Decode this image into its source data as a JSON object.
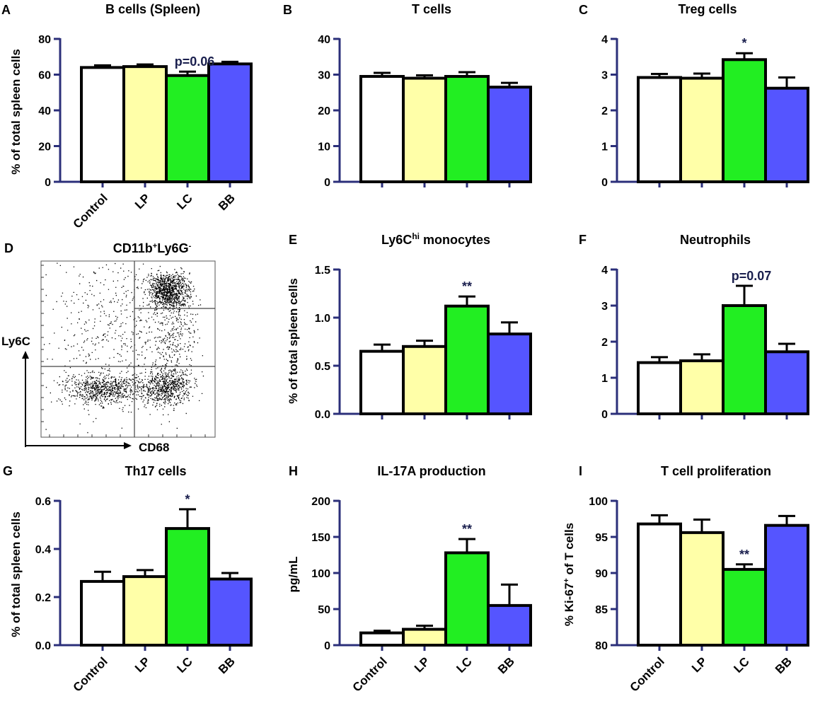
{
  "panels": [
    {
      "id": "A",
      "title": "B cells (Spleen)",
      "ylabel": "% of total spleen cells",
      "ylim": [
        0,
        80
      ],
      "yticks": [
        "0",
        "20",
        "40",
        "60",
        "80"
      ],
      "show_xlabels": true,
      "values": [
        64,
        64.5,
        59.5,
        66
      ],
      "errors": [
        1.2,
        1.2,
        2.2,
        1.2
      ],
      "annotations": {
        "text": "p=0.06",
        "bar": 2
      }
    },
    {
      "id": "B",
      "title": "T cells",
      "ylabel": "",
      "ylim": [
        0,
        40
      ],
      "yticks": [
        "0",
        "10",
        "20",
        "30",
        "40"
      ],
      "show_xlabels": false,
      "values": [
        29.5,
        29,
        29.5,
        26.5
      ],
      "errors": [
        1,
        0.8,
        1.2,
        1.2
      ],
      "annotations": null
    },
    {
      "id": "C",
      "title": "Treg cells",
      "ylabel": "",
      "ylim": [
        0,
        4
      ],
      "yticks": [
        "0",
        "1",
        "2",
        "3",
        "4"
      ],
      "show_xlabels": false,
      "values": [
        2.92,
        2.9,
        3.42,
        2.62
      ],
      "errors": [
        0.1,
        0.13,
        0.18,
        0.3
      ],
      "annotations": {
        "text": "*",
        "bar": 2
      }
    },
    {
      "id": "E",
      "title_main": "Ly6C",
      "title_sup": "hi",
      "title_rest": " monocytes",
      "ylabel": "% of total spleen cells",
      "ylim": [
        0,
        1.5
      ],
      "yticks": [
        "0.0",
        "0.5",
        "1.0",
        "1.5"
      ],
      "show_xlabels": false,
      "values": [
        0.65,
        0.7,
        1.12,
        0.83
      ],
      "errors": [
        0.07,
        0.06,
        0.1,
        0.12
      ],
      "annotations": {
        "text": "**",
        "bar": 2
      }
    },
    {
      "id": "F",
      "title": "Neutrophils",
      "ylabel": "",
      "ylim": [
        0,
        4
      ],
      "yticks": [
        "0",
        "1",
        "2",
        "3",
        "4"
      ],
      "show_xlabels": false,
      "values": [
        1.42,
        1.47,
        3.0,
        1.72
      ],
      "errors": [
        0.15,
        0.18,
        0.55,
        0.22
      ],
      "annotations": {
        "text": "p=0.07",
        "bar": 2
      }
    },
    {
      "id": "G",
      "title": "Th17 cells",
      "ylabel": "% of total spleen cells",
      "ylim": [
        0,
        0.6
      ],
      "yticks": [
        "0.0",
        "0.2",
        "0.4",
        "0.6"
      ],
      "show_xlabels": true,
      "values": [
        0.265,
        0.285,
        0.485,
        0.275
      ],
      "errors": [
        0.04,
        0.027,
        0.08,
        0.025
      ],
      "annotations": {
        "text": "*",
        "bar": 2
      }
    },
    {
      "id": "H",
      "title": "IL-17A production",
      "ylabel": "pg/mL",
      "ylim": [
        0,
        200
      ],
      "yticks": [
        "0",
        "50",
        "100",
        "150",
        "200"
      ],
      "show_xlabels": true,
      "values": [
        17,
        22,
        128,
        55
      ],
      "errors": [
        3,
        5,
        19,
        29
      ],
      "annotations": {
        "text": "**",
        "bar": 2
      }
    },
    {
      "id": "I",
      "title": "T cell proliferation",
      "ylabel_main": "% Ki-67",
      "ylabel_sup": "+",
      "ylabel_rest": " of T cells",
      "ylim": [
        80,
        100
      ],
      "yticks": [
        "80",
        "85",
        "90",
        "95",
        "100"
      ],
      "show_xlabels": true,
      "values": [
        96.8,
        95.6,
        90.5,
        96.6
      ],
      "errors": [
        1.2,
        1.8,
        0.7,
        1.3
      ],
      "annotations": {
        "text": "**",
        "bar": 2
      }
    }
  ],
  "flow": {
    "label": "D",
    "title_main": "CD11b",
    "title_sup1": "+",
    "title_mid": "Ly6G",
    "title_sup2": "-",
    "yaxis": "Ly6C",
    "xaxis": "CD68"
  },
  "categories": [
    "Control",
    "LP",
    "LC",
    "BB"
  ],
  "colors": {
    "Control": "#ffffff",
    "LP": "#ffffa8",
    "LC": "#22ee22",
    "BB": "#5555ff",
    "axis": "#2b2f7a"
  }
}
